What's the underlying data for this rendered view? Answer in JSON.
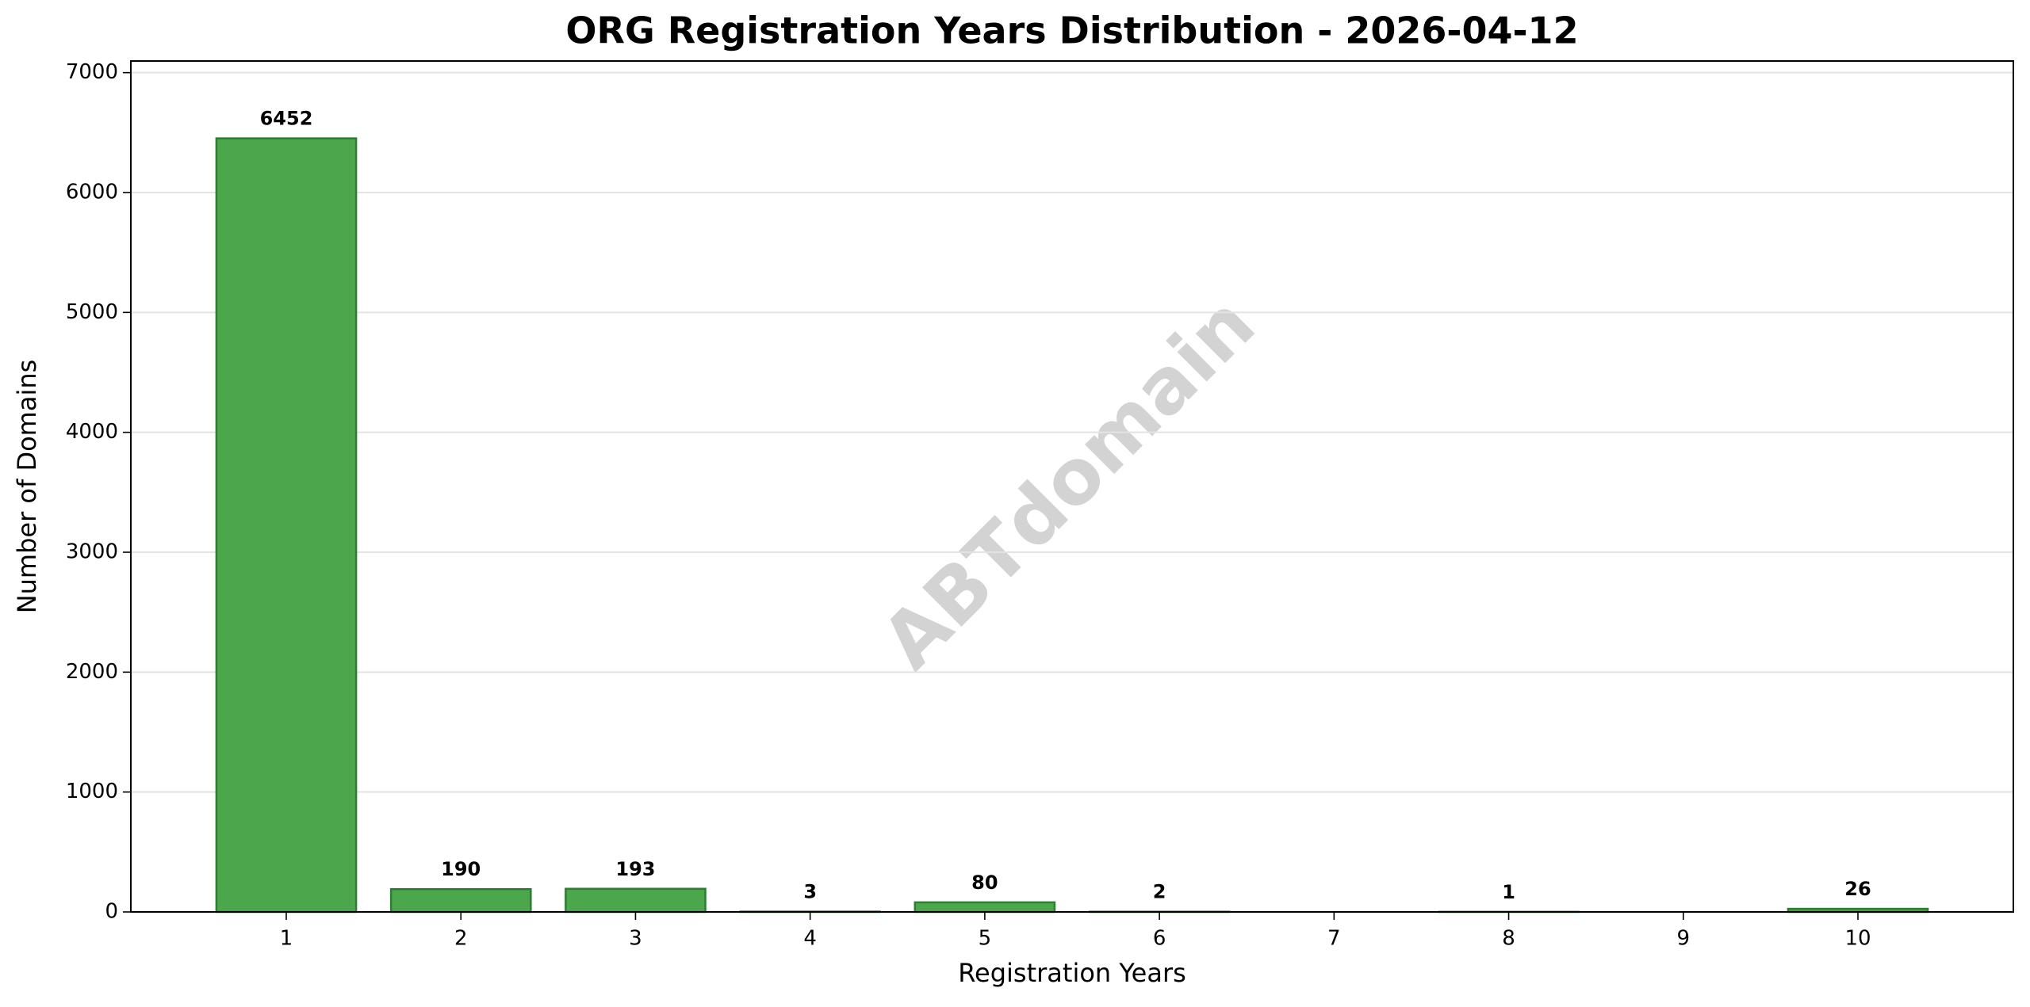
{
  "chart_data": {
    "type": "bar",
    "title": "ORG Registration Years Distribution - 2026-04-12",
    "x_label": "Registration Years",
    "y_label": "Number of Domains",
    "watermark": "ABTdomain",
    "x": [
      1,
      2,
      3,
      4,
      5,
      6,
      8,
      10
    ],
    "values": [
      6452,
      190,
      193,
      3,
      80,
      2,
      1,
      26
    ],
    "color": "#4ca64c",
    "edge_color": "#2e7d32",
    "xlim": [
      0.11,
      10.89
    ],
    "xticks": [
      1,
      2,
      3,
      4,
      5,
      6,
      7,
      8,
      9,
      10
    ],
    "ylim": [
      0,
      7097
    ],
    "yticks": [
      0,
      1000,
      2000,
      3000,
      4000,
      5000,
      6000,
      7000
    ],
    "grid": true
  }
}
